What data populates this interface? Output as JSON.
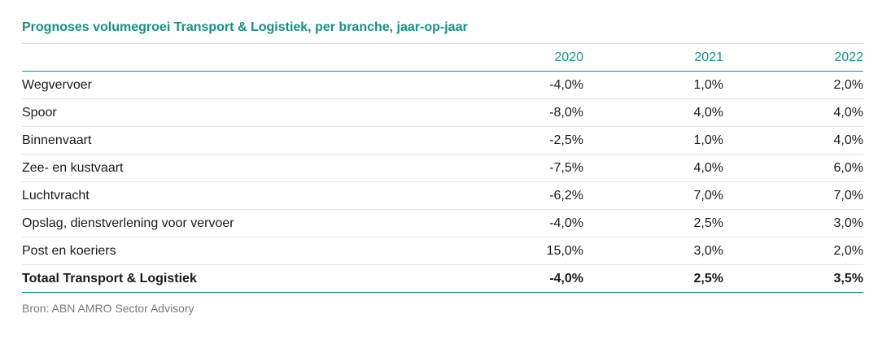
{
  "title": "Prognoses volumegroei Transport & Logistiek, per branche, jaar-op-jaar",
  "table": {
    "columns": [
      "2020",
      "2021",
      "2022"
    ],
    "rows": [
      {
        "label": "Wegvervoer",
        "values": [
          "-4,0%",
          "1,0%",
          "2,0%"
        ]
      },
      {
        "label": "Spoor",
        "values": [
          "-8,0%",
          "4,0%",
          "4,0%"
        ]
      },
      {
        "label": "Binnenvaart",
        "values": [
          "-2,5%",
          "1,0%",
          "4,0%"
        ]
      },
      {
        "label": "Zee- en kustvaart",
        "values": [
          "-7,5%",
          "4,0%",
          "6,0%"
        ]
      },
      {
        "label": "Luchtvracht",
        "values": [
          "-6,2%",
          "7,0%",
          "7,0%"
        ]
      },
      {
        "label": "Opslag, dienstverlening voor vervoer",
        "values": [
          "-4,0%",
          "2,5%",
          "3,0%"
        ]
      },
      {
        "label": "Post en koeriers",
        "values": [
          "15,0%",
          "3,0%",
          "2,0%"
        ]
      }
    ],
    "total": {
      "label": "Totaal Transport & Logistiek",
      "values": [
        "-4,0%",
        "2,5%",
        "3,5%"
      ]
    }
  },
  "source": "Bron: ABN AMRO Sector Advisory",
  "colors": {
    "accent": "#139187",
    "text": "#1a1a1a",
    "source": "#7a7a7a",
    "row_divider": "#e3e3e3"
  }
}
